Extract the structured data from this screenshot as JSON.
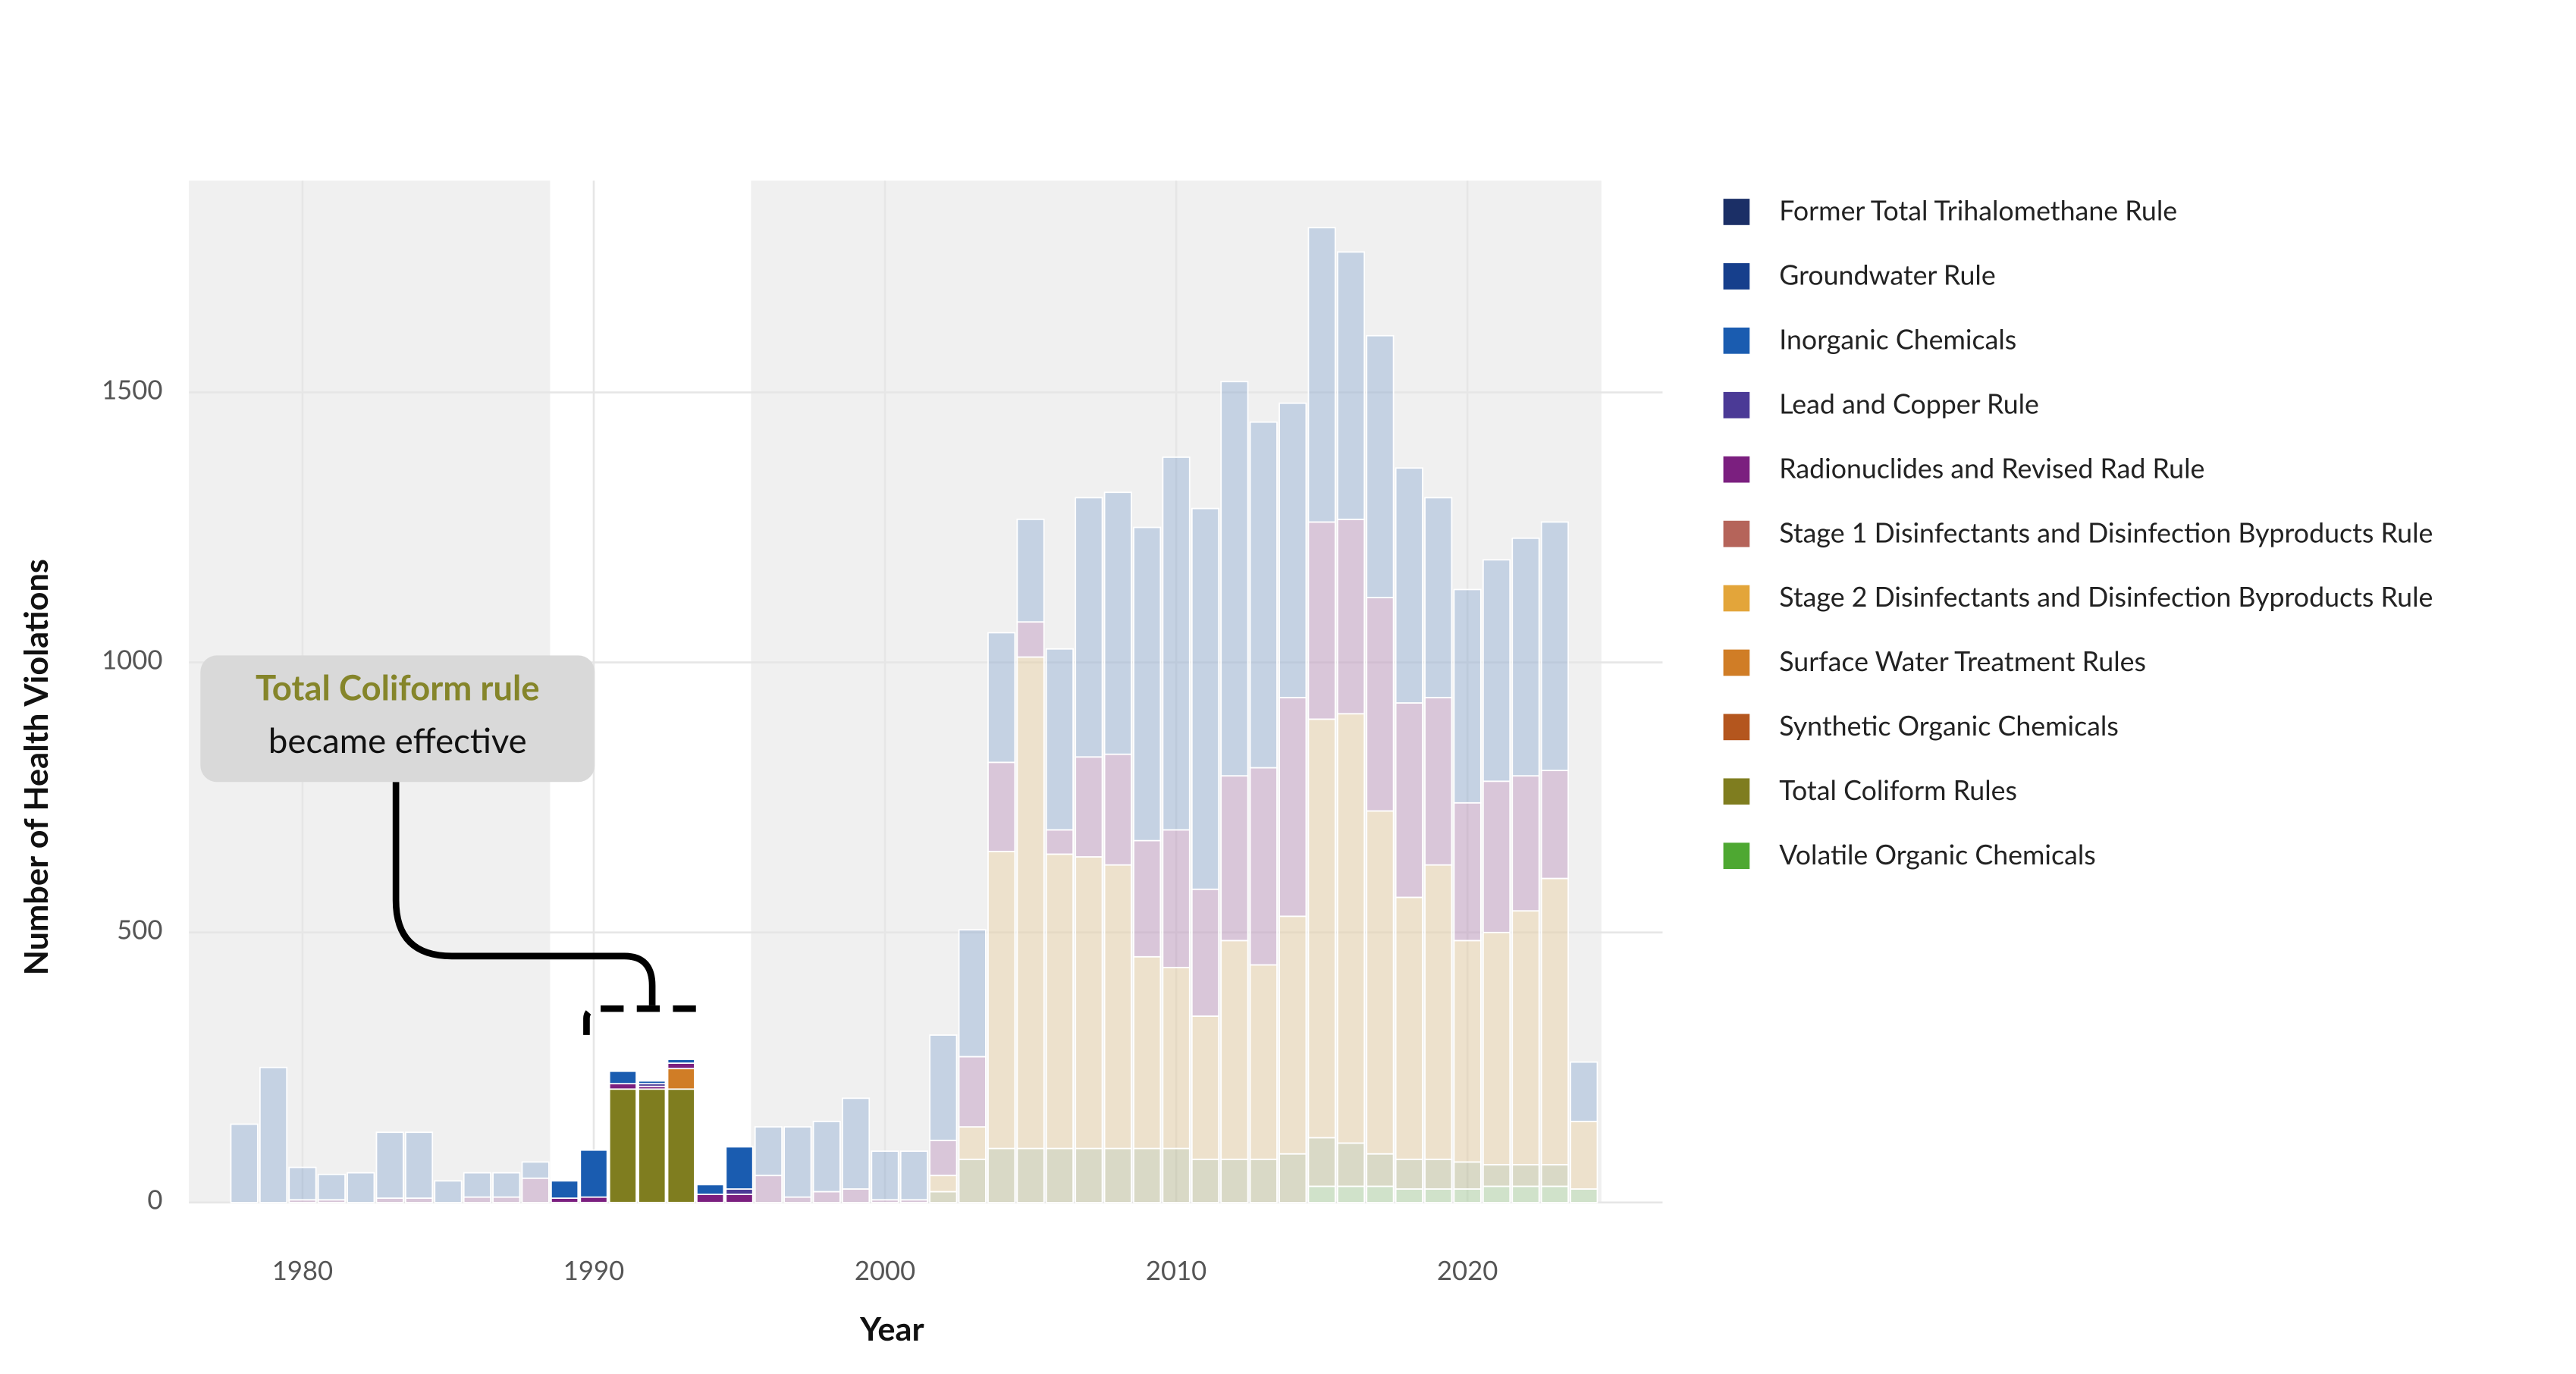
{
  "chart_data": {
    "type": "stacked_bar",
    "xlabel": "Year",
    "ylabel": "Number of Health Violations",
    "annotation": {
      "title": "Total Coliform rule",
      "text": "became effective"
    },
    "xlim": [
      1976.1,
      2026.7
    ],
    "xticks": [
      1980,
      1990,
      2000,
      2010,
      2020
    ],
    "ylim": [
      0,
      1892
    ],
    "yticks": [
      0,
      500,
      1000,
      1500
    ],
    "grid": true,
    "shaded_ranges": [
      [
        1976.1,
        1988.5
      ],
      [
        1995.4,
        2024.6
      ]
    ],
    "x": [
      1978,
      1979,
      1980,
      1981,
      1982,
      1983,
      1984,
      1985,
      1986,
      1987,
      1988,
      1989,
      1990,
      1991,
      1992,
      1993,
      1994,
      1995,
      1996,
      1997,
      1998,
      1999,
      2000,
      2001,
      2002,
      2003,
      2004,
      2005,
      2006,
      2007,
      2008,
      2009,
      2010,
      2011,
      2012,
      2013,
      2014,
      2015,
      2016,
      2017,
      2018,
      2019,
      2020,
      2021,
      2022,
      2023,
      2024
    ],
    "series": [
      {
        "name": "Former Total Trihalomethane Rule",
        "color": "#1b2f66",
        "values": [
          0,
          0,
          0,
          0,
          0,
          0,
          0,
          0,
          0,
          0,
          0,
          0,
          0,
          0,
          0,
          0,
          0,
          0,
          0,
          0,
          0,
          0,
          0,
          0,
          0,
          0,
          0,
          0,
          0,
          0,
          0,
          0,
          0,
          0,
          0,
          0,
          0,
          0,
          0,
          0,
          0,
          0,
          0,
          0,
          0,
          0,
          0
        ]
      },
      {
        "name": "Groundwater Rule",
        "color": "#163f8c",
        "values": [
          0,
          0,
          0,
          0,
          0,
          0,
          0,
          0,
          0,
          0,
          0,
          0,
          0,
          0,
          0,
          0,
          0,
          0,
          0,
          0,
          0,
          0,
          0,
          0,
          0,
          0,
          0,
          0,
          0,
          0,
          0,
          0,
          0,
          0,
          0,
          0,
          0,
          0,
          0,
          0,
          0,
          0,
          0,
          0,
          0,
          0,
          0
        ]
      },
      {
        "name": "Inorganic Chemicals",
        "color": "#1a5cb0",
        "values": [
          145,
          250,
          60,
          47,
          55,
          122,
          122,
          40,
          45,
          45,
          30,
          32,
          87,
          23,
          5,
          7,
          18,
          78,
          90,
          130,
          130,
          168,
          90,
          90,
          195,
          235,
          240,
          190,
          335,
          480,
          485,
          580,
          690,
          705,
          730,
          640,
          545,
          545,
          495,
          485,
          435,
          370,
          395,
          410,
          440,
          460,
          110
        ]
      },
      {
        "name": "Lead and Copper Rule",
        "color": "#4b3a96",
        "values": [
          0,
          0,
          0,
          0,
          0,
          0,
          0,
          0,
          0,
          0,
          0,
          0,
          0,
          0,
          5,
          0,
          0,
          10,
          0,
          0,
          0,
          0,
          0,
          0,
          0,
          0,
          0,
          0,
          0,
          0,
          0,
          0,
          0,
          0,
          0,
          0,
          0,
          0,
          0,
          0,
          0,
          0,
          0,
          0,
          0,
          0,
          0
        ]
      },
      {
        "name": "Radionuclides and Revised Rad Rule",
        "color": "#7b1f7f",
        "values": [
          0,
          0,
          5,
          5,
          0,
          8,
          8,
          0,
          10,
          10,
          45,
          8,
          10,
          10,
          5,
          10,
          15,
          15,
          50,
          10,
          20,
          25,
          5,
          5,
          65,
          130,
          165,
          65,
          45,
          185,
          205,
          215,
          255,
          235,
          305,
          365,
          405,
          365,
          360,
          395,
          360,
          310,
          255,
          280,
          250,
          200,
          0
        ]
      },
      {
        "name": "Stage 1 Disinfectants and Disinfection Byproducts Rule",
        "color": "#b5645a",
        "values": [
          0,
          0,
          0,
          0,
          0,
          0,
          0,
          0,
          0,
          0,
          0,
          0,
          0,
          0,
          0,
          0,
          0,
          0,
          0,
          0,
          0,
          0,
          0,
          0,
          0,
          0,
          0,
          0,
          0,
          0,
          0,
          0,
          0,
          0,
          0,
          0,
          0,
          0,
          0,
          0,
          0,
          0,
          0,
          0,
          0,
          0,
          0
        ]
      },
      {
        "name": "Stage 2 Disinfectants and Disinfection Byproducts Rule",
        "color": "#e3a53a",
        "values": [
          0,
          0,
          0,
          0,
          0,
          0,
          0,
          0,
          0,
          0,
          0,
          0,
          0,
          0,
          0,
          0,
          0,
          0,
          0,
          0,
          0,
          0,
          0,
          0,
          30,
          60,
          550,
          910,
          545,
          540,
          525,
          355,
          335,
          265,
          405,
          360,
          440,
          775,
          795,
          635,
          485,
          545,
          410,
          430,
          470,
          530,
          125
        ]
      },
      {
        "name": "Surface Water Treatment Rules",
        "color": "#d07d26",
        "values": [
          0,
          0,
          0,
          0,
          0,
          0,
          0,
          0,
          0,
          0,
          0,
          0,
          0,
          0,
          0,
          38,
          0,
          0,
          0,
          0,
          0,
          0,
          0,
          0,
          0,
          0,
          0,
          0,
          0,
          0,
          0,
          0,
          0,
          0,
          0,
          0,
          0,
          0,
          0,
          0,
          0,
          0,
          0,
          0,
          0,
          0,
          0
        ]
      },
      {
        "name": "Synthetic Organic Chemicals",
        "color": "#b4561e",
        "values": [
          0,
          0,
          0,
          0,
          0,
          0,
          0,
          0,
          0,
          0,
          0,
          0,
          0,
          0,
          0,
          0,
          0,
          0,
          0,
          0,
          0,
          0,
          0,
          0,
          0,
          0,
          0,
          0,
          0,
          0,
          0,
          0,
          0,
          0,
          0,
          0,
          0,
          0,
          0,
          0,
          0,
          0,
          0,
          0,
          0,
          0,
          0
        ]
      },
      {
        "name": "Total Coliform Rules",
        "color": "#7f7d1f",
        "values": [
          0,
          0,
          0,
          0,
          0,
          0,
          0,
          0,
          0,
          0,
          0,
          0,
          0,
          210,
          210,
          210,
          0,
          0,
          0,
          0,
          0,
          0,
          0,
          0,
          20,
          80,
          100,
          100,
          100,
          100,
          100,
          100,
          100,
          80,
          80,
          80,
          90,
          90,
          80,
          60,
          55,
          55,
          50,
          40,
          40,
          40,
          0
        ]
      },
      {
        "name": "Volatile Organic Chemicals",
        "color": "#4ea832",
        "values": [
          0,
          0,
          0,
          0,
          0,
          0,
          0,
          0,
          0,
          0,
          0,
          0,
          0,
          0,
          0,
          0,
          0,
          0,
          0,
          0,
          0,
          0,
          0,
          0,
          0,
          0,
          0,
          0,
          0,
          0,
          0,
          0,
          0,
          0,
          0,
          0,
          0,
          30,
          30,
          30,
          25,
          25,
          25,
          30,
          30,
          30,
          25
        ]
      }
    ]
  }
}
